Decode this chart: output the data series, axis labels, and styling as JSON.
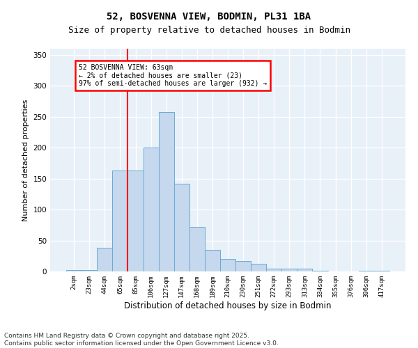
{
  "title_line1": "52, BOSVENNA VIEW, BODMIN, PL31 1BA",
  "title_line2": "Size of property relative to detached houses in Bodmin",
  "xlabel": "Distribution of detached houses by size in Bodmin",
  "ylabel": "Number of detached properties",
  "categories": [
    "2sqm",
    "23sqm",
    "44sqm",
    "65sqm",
    "85sqm",
    "106sqm",
    "127sqm",
    "147sqm",
    "168sqm",
    "189sqm",
    "210sqm",
    "230sqm",
    "251sqm",
    "272sqm",
    "293sqm",
    "313sqm",
    "334sqm",
    "355sqm",
    "376sqm",
    "396sqm",
    "417sqm"
  ],
  "values": [
    2,
    2,
    38,
    163,
    163,
    200,
    258,
    142,
    72,
    35,
    20,
    17,
    12,
    5,
    5,
    4,
    1,
    0,
    0,
    1,
    1
  ],
  "bar_color": "#c5d8ed",
  "bar_edge_color": "#6aaad4",
  "property_line_x": 3.5,
  "annotation_text": "52 BOSVENNA VIEW: 63sqm\n← 2% of detached houses are smaller (23)\n97% of semi-detached houses are larger (932) →",
  "annotation_box_color": "white",
  "annotation_box_edge_color": "red",
  "vline_color": "red",
  "ylim": [
    0,
    360
  ],
  "yticks": [
    0,
    50,
    100,
    150,
    200,
    250,
    300,
    350
  ],
  "background_color": "#e8f0f8",
  "grid_color": "white",
  "footer_line1": "Contains HM Land Registry data © Crown copyright and database right 2025.",
  "footer_line2": "Contains public sector information licensed under the Open Government Licence v3.0.",
  "title_fontsize": 10,
  "subtitle_fontsize": 9,
  "tick_fontsize": 6.5,
  "ylabel_fontsize": 8,
  "xlabel_fontsize": 8.5,
  "footer_fontsize": 6.5
}
